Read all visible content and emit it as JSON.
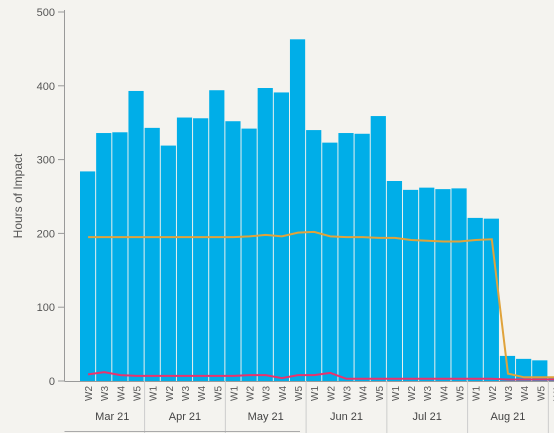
{
  "chart_data": {
    "type": "bar",
    "ylabel": "Hours of Impact",
    "ylim": [
      0,
      500
    ],
    "yticks": [
      0,
      100,
      200,
      300,
      400,
      500
    ],
    "grid": false,
    "categories": [
      "W2",
      "W3",
      "W4",
      "W5",
      "W1",
      "W2",
      "W3",
      "W4",
      "W5",
      "W1",
      "W2",
      "W3",
      "W4",
      "W5",
      "W1",
      "W2",
      "W3",
      "W4",
      "W5",
      "W1",
      "W2",
      "W3",
      "W4",
      "W5",
      "W1",
      "W2",
      "W3",
      "W4",
      "W5",
      "W1"
    ],
    "months": [
      {
        "label": "Mar 21",
        "weeks": 4
      },
      {
        "label": "Apr 21",
        "weeks": 5
      },
      {
        "label": "May 21",
        "weeks": 5
      },
      {
        "label": "Jun 21",
        "weeks": 5
      },
      {
        "label": "Jul 21",
        "weeks": 5
      },
      {
        "label": "Aug 21",
        "weeks": 5
      },
      {
        "label": "",
        "weeks": 1
      }
    ],
    "series": [
      {
        "type": "bar",
        "color": "#00aee8",
        "values": [
          284,
          336,
          337,
          393,
          343,
          319,
          357,
          356,
          394,
          352,
          342,
          397,
          391,
          463,
          340,
          323,
          336,
          335,
          359,
          271,
          259,
          262,
          260,
          261,
          221,
          220,
          34,
          30,
          28,
          5
        ]
      },
      {
        "type": "line",
        "color": "#e0a33b",
        "values": [
          195,
          195,
          195,
          195,
          195,
          195,
          195,
          195,
          195,
          195,
          196,
          198,
          196,
          201,
          202,
          196,
          195,
          195,
          194,
          194,
          191,
          190,
          189,
          189,
          191,
          192,
          10,
          5,
          5,
          5
        ]
      },
      {
        "type": "line",
        "color": "#e8336d",
        "values": [
          9,
          12,
          8,
          7,
          7,
          7,
          7,
          7,
          7,
          7,
          8,
          8,
          4,
          8,
          8,
          11,
          3,
          3,
          3,
          3,
          3,
          3,
          3,
          3,
          3,
          3,
          2,
          2,
          2,
          2
        ]
      }
    ]
  }
}
